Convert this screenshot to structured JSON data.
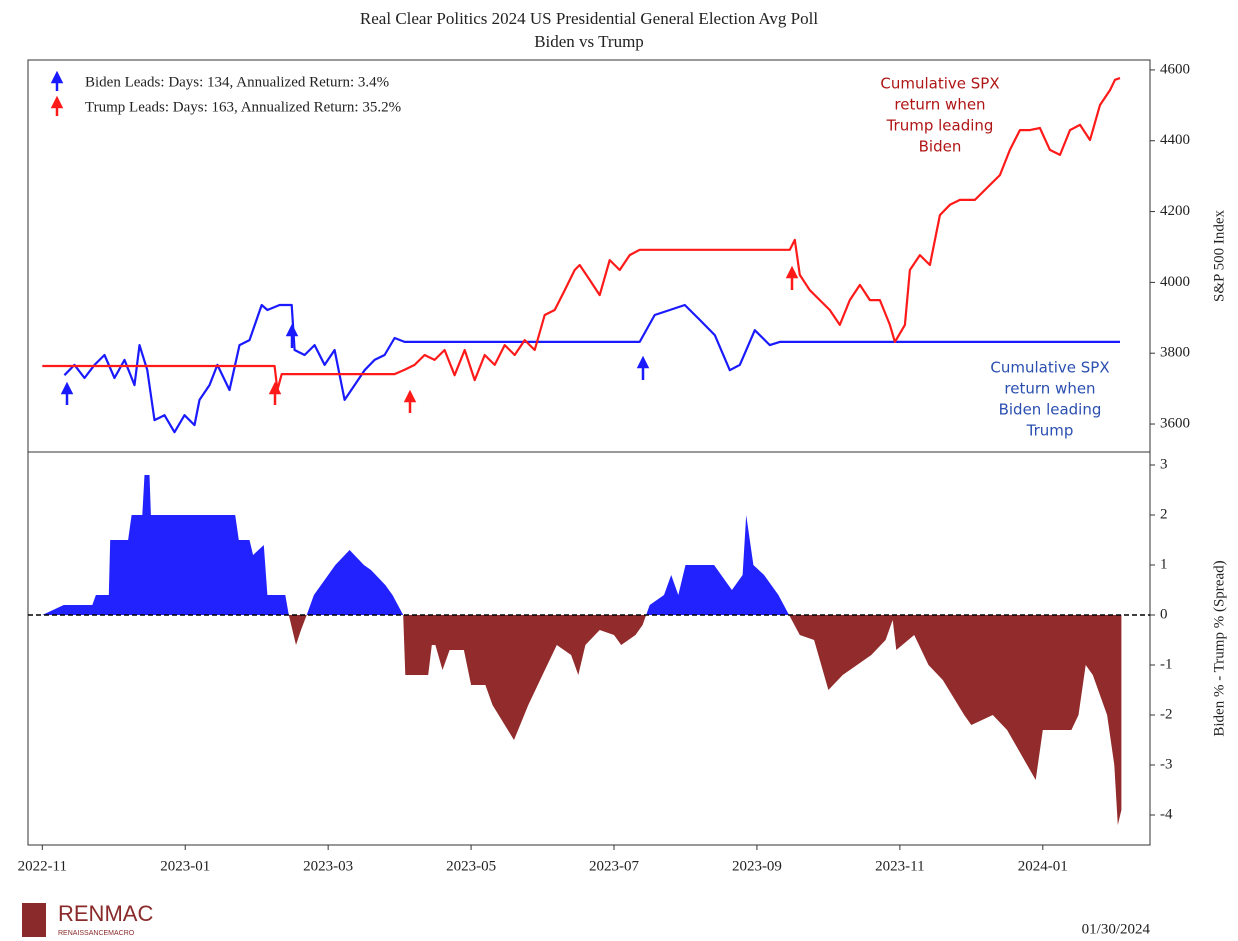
{
  "chart_data": [
    {
      "type": "line",
      "title": "Real Clear Politics 2024 US Presidential General Election Avg Poll",
      "subtitle": "Biden vs Trump",
      "ylabel": "S&P 500 Index",
      "xlim": [
        -0.2,
        15.5
      ],
      "ylim": [
        3521,
        4628
      ],
      "yticks": [
        3600,
        3800,
        4000,
        4200,
        4400,
        4600
      ],
      "legend": "upper left",
      "series": [
        {
          "name": "Biden Leads:  Days: 134, Annualized Return: 3.4%",
          "color": "#1a1aff",
          "x": [
            0.31,
            0.45,
            0.59,
            0.73,
            0.87,
            1.01,
            1.15,
            1.29,
            1.36,
            1.47,
            1.57,
            1.71,
            1.85,
            1.99,
            2.13,
            2.2,
            2.34,
            2.45,
            2.62,
            2.76,
            2.9,
            3.07,
            3.15,
            3.32,
            3.49,
            3.53,
            3.67,
            3.81,
            3.95,
            4.09,
            4.23,
            4.37,
            4.51,
            4.65,
            4.79,
            4.93,
            5.07,
            5.28,
            8.36,
            8.57,
            8.78,
            8.99,
            9.2,
            9.41,
            9.62,
            9.76,
            9.97,
            10.18,
            10.32,
            10.46,
            15.08
          ],
          "values": [
            3738,
            3767,
            3730,
            3767,
            3795,
            3730,
            3781,
            3710,
            3823,
            3752,
            3611,
            3625,
            3577,
            3625,
            3597,
            3668,
            3710,
            3767,
            3696,
            3823,
            3837,
            3936,
            3922,
            3936,
            3936,
            3809,
            3795,
            3823,
            3767,
            3809,
            3668,
            3710,
            3752,
            3781,
            3795,
            3843,
            3832,
            3832,
            3832,
            3908,
            3922,
            3936,
            3894,
            3851,
            3752,
            3767,
            3865,
            3823,
            3832,
            3832,
            3832
          ]
        },
        {
          "name": "Trump Leads:  Days: 163, Annualized Return: 35.2%",
          "color": "#ff1a1a",
          "x": [
            0,
            3.25,
            3.29,
            3.35,
            4.93,
            5.07,
            5.21,
            5.35,
            5.49,
            5.63,
            5.77,
            5.91,
            6.05,
            6.19,
            6.33,
            6.47,
            6.61,
            6.75,
            6.89,
            7.03,
            7.17,
            7.31,
            7.45,
            7.52,
            7.66,
            7.8,
            7.94,
            8.08,
            8.22,
            8.36,
            10.46,
            10.53,
            10.6,
            10.74,
            10.88,
            11.02,
            11.16,
            11.3,
            11.44,
            11.58,
            11.72,
            11.86,
            11.93,
            12.07,
            12.14,
            12.28,
            12.42,
            12.56,
            12.7,
            12.84,
            13.05,
            13.26,
            13.4,
            13.54,
            13.68,
            13.82,
            13.96,
            14.1,
            14.24,
            14.38,
            14.52,
            14.66,
            14.8,
            14.94,
            15.01,
            15.08
          ],
          "values": [
            3764,
            3764,
            3696,
            3741,
            3741,
            3753,
            3767,
            3795,
            3781,
            3809,
            3738,
            3809,
            3724,
            3795,
            3767,
            3823,
            3795,
            3837,
            3809,
            3908,
            3922,
            3978,
            4035,
            4049,
            4007,
            3964,
            4063,
            4035,
            4077,
            4092,
            4092,
            4120,
            4021,
            3978,
            3950,
            3922,
            3880,
            3950,
            3993,
            3950,
            3950,
            3880,
            3832,
            3880,
            4035,
            4077,
            4049,
            4190,
            4219,
            4233,
            4233,
            4275,
            4303,
            4374,
            4430,
            4430,
            4436,
            4374,
            4360,
            4430,
            4445,
            4402,
            4501,
            4543,
            4572,
            4577
          ]
        }
      ],
      "annotations": [
        {
          "lines": [
            "Cumulative SPX",
            "return when",
            "Trump leading",
            "Biden"
          ],
          "color": "#b01515"
        },
        {
          "lines": [
            "Cumulative SPX",
            "return when",
            "Biden leading",
            "Trump"
          ],
          "color": "#2a4fb0"
        }
      ]
    },
    {
      "type": "area",
      "ylabel": "Biden % - Trump % (Spread)",
      "xlim": [
        -0.2,
        15.5
      ],
      "ylim": [
        -4.6,
        3.26
      ],
      "yticks": [
        -4,
        -3,
        -2,
        -1,
        0,
        1,
        2,
        3
      ],
      "xticks": [
        {
          "value": 0,
          "label": "2022-11"
        },
        {
          "value": 2,
          "label": "2023-01"
        },
        {
          "value": 4,
          "label": "2023-03"
        },
        {
          "value": 6,
          "label": "2023-05"
        },
        {
          "value": 8,
          "label": "2023-07"
        },
        {
          "value": 10,
          "label": "2023-09"
        },
        {
          "value": 12,
          "label": "2023-11"
        },
        {
          "value": 14,
          "label": "2024-01"
        }
      ],
      "hline": 0,
      "color_positive": "#2222ff",
      "color_negative": "#922b2b",
      "x": [
        0,
        0.3,
        0.7,
        0.75,
        0.93,
        0.95,
        1.2,
        1.25,
        1.4,
        1.43,
        1.5,
        1.52,
        2.7,
        2.75,
        2.9,
        2.95,
        3.1,
        3.15,
        3.4,
        3.45,
        3.55,
        3.62,
        3.7,
        3.8,
        4.0,
        4.1,
        4.3,
        4.5,
        4.6,
        4.8,
        4.9,
        5.05,
        5.08,
        5.4,
        5.45,
        5.5,
        5.6,
        5.7,
        5.9,
        6.0,
        6.2,
        6.3,
        6.6,
        6.8,
        7.0,
        7.2,
        7.4,
        7.5,
        7.6,
        7.8,
        8.0,
        8.1,
        8.3,
        8.4,
        8.5,
        8.7,
        8.8,
        8.9,
        9.0,
        9.4,
        9.5,
        9.65,
        9.8,
        9.85,
        9.95,
        10.1,
        10.3,
        10.45,
        10.6,
        10.8,
        11.0,
        11.2,
        11.4,
        11.6,
        11.8,
        11.9,
        11.95,
        12.2,
        12.4,
        12.6,
        12.9,
        13.0,
        13.3,
        13.5,
        13.7,
        13.9,
        14.0,
        14.4,
        14.5,
        14.6,
        14.7,
        14.9,
        15.0,
        15.05,
        15.1
      ],
      "values": [
        0,
        0.2,
        0.2,
        0.4,
        0.4,
        1.5,
        1.5,
        2.0,
        2.0,
        2.8,
        2.8,
        2.0,
        2.0,
        1.5,
        1.5,
        1.2,
        1.4,
        0.4,
        0.4,
        0,
        -0.6,
        -0.3,
        0,
        0.4,
        0.8,
        1.0,
        1.3,
        1.0,
        0.9,
        0.6,
        0.4,
        0,
        -1.2,
        -1.2,
        -0.6,
        -0.6,
        -1.1,
        -0.7,
        -0.7,
        -1.4,
        -1.4,
        -1.8,
        -2.5,
        -1.8,
        -1.2,
        -0.6,
        -0.8,
        -1.2,
        -0.6,
        -0.3,
        -0.4,
        -0.6,
        -0.4,
        -0.2,
        0.2,
        0.4,
        0.8,
        0.4,
        1.0,
        1.0,
        0.8,
        0.5,
        0.8,
        2.0,
        1.0,
        0.8,
        0.4,
        0,
        -0.4,
        -0.5,
        -1.5,
        -1.2,
        -1.0,
        -0.8,
        -0.5,
        -0.1,
        -0.7,
        -0.4,
        -1.0,
        -1.3,
        -2.0,
        -2.2,
        -2.0,
        -2.3,
        -2.8,
        -3.3,
        -2.3,
        -2.3,
        -2.0,
        -1.0,
        -1.2,
        -2.0,
        -3.0,
        -4.2,
        -3.9
      ]
    }
  ],
  "footer": {
    "logo": "RENMAC",
    "logo_sub": "RENAISSANCEMACRO",
    "date": "01/30/2024"
  }
}
